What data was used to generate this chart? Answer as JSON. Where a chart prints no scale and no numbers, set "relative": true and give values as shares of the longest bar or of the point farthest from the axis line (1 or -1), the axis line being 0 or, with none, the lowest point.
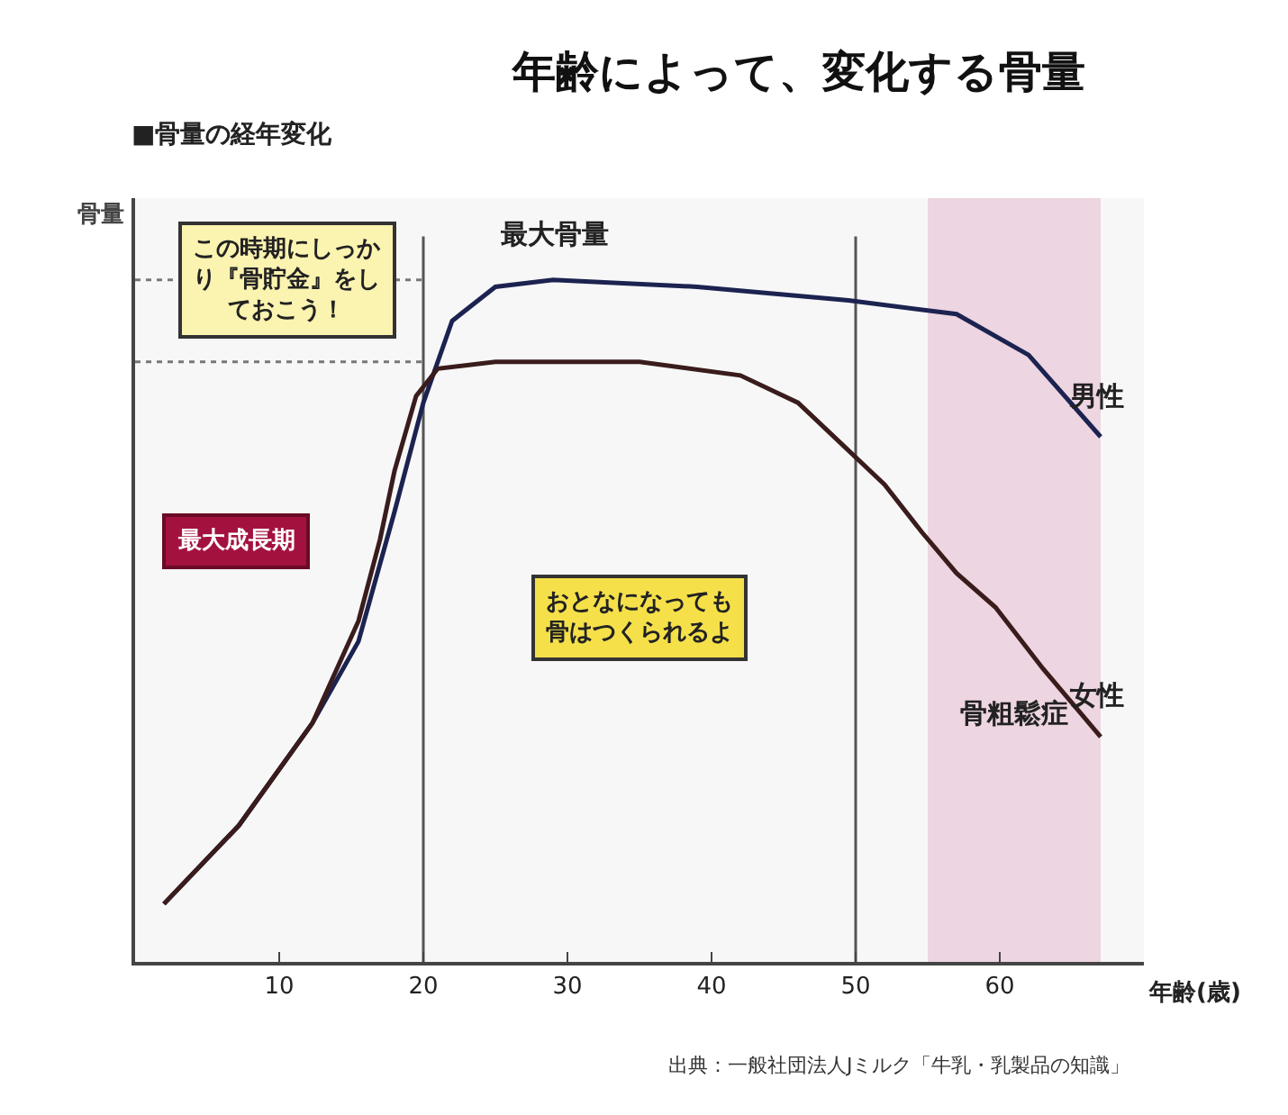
{
  "chart_data": {
    "type": "line",
    "title": "年齢によって、変化する骨量",
    "subtitle": "■骨量の経年変化",
    "xlabel": "年齢(歳)",
    "ylabel": "骨量",
    "relative": true,
    "tick_labels": "x",
    "grid": false,
    "legend": false,
    "marker": "none",
    "line_style": "solid",
    "xlim": [
      0,
      70
    ],
    "xticks": [
      10,
      20,
      30,
      40,
      50,
      60
    ],
    "series": [
      {
        "name": "男性",
        "color": "#1c2350",
        "x": [
          2,
          7.2,
          12.3,
          15.5,
          18,
          20,
          22,
          25,
          29,
          39,
          49.5,
          57,
          62,
          67
        ],
        "values": [
          0.085,
          0.2,
          0.35,
          0.47,
          0.66,
          0.82,
          0.94,
          0.99,
          1.0,
          0.99,
          0.97,
          0.95,
          0.89,
          0.77
        ]
      },
      {
        "name": "女性",
        "color": "#3a1c1c",
        "x": [
          2,
          7.2,
          12.3,
          15.5,
          17,
          18,
          19.5,
          21,
          25,
          35,
          42,
          46,
          49.5,
          52,
          54.6,
          57,
          59.7,
          63,
          67
        ],
        "values": [
          0.085,
          0.2,
          0.35,
          0.5,
          0.62,
          0.72,
          0.83,
          0.87,
          0.88,
          0.88,
          0.86,
          0.82,
          0.75,
          0.7,
          0.63,
          0.57,
          0.52,
          0.43,
          0.33
        ]
      }
    ],
    "ref_lines": [
      {
        "axis": "x",
        "value": 20,
        "color": "#555555",
        "line_style": "solid"
      },
      {
        "axis": "x",
        "value": 50,
        "color": "#555555",
        "line_style": "solid"
      },
      {
        "axis": "y",
        "value": 1.0,
        "color": "#777777",
        "line_style": "dotted"
      },
      {
        "axis": "y",
        "value": 0.88,
        "color": "#777777",
        "line_style": "dotted"
      }
    ],
    "bands": [
      {
        "axis": "x",
        "from": 55,
        "to": 67,
        "label": "骨粗鬆症",
        "color": "#e3b4cc"
      }
    ],
    "annotations": [
      {
        "text": "最大骨量",
        "x": 29,
        "y": 1.0
      },
      "この時期にしっかり『骨貯金』をしておこう！",
      "最大成長期",
      "おとなになっても骨はつくられるよ",
      "出典：一般社団法人Jミルク「牛乳・乳製品の知識」"
    ]
  }
}
